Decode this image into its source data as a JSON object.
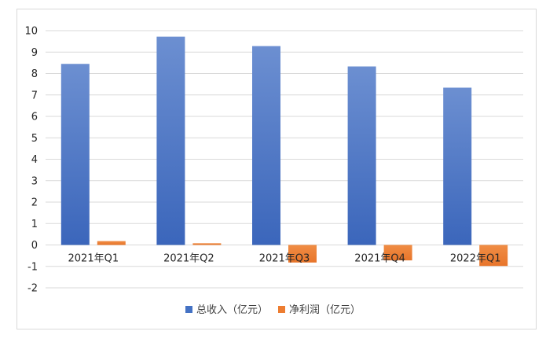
{
  "chart_data": {
    "type": "bar",
    "categories": [
      "2021年Q1",
      "2021年Q2",
      "2021年Q3",
      "2021年Q4",
      "2022年Q1"
    ],
    "series": [
      {
        "name": "总收入（亿元）",
        "values": [
          8.45,
          9.72,
          9.28,
          8.33,
          7.34
        ]
      },
      {
        "name": "净利润（亿元）",
        "values": [
          0.18,
          0.08,
          -0.82,
          -0.72,
          -0.98
        ]
      }
    ],
    "ylim": [
      -2,
      10
    ],
    "yticks": [
      10,
      9,
      8,
      7,
      6,
      5,
      4,
      3,
      2,
      1,
      0,
      -1,
      -2
    ],
    "grid": true,
    "legend": "bottom",
    "colors": [
      "#4472c4",
      "#ed7d31"
    ]
  }
}
